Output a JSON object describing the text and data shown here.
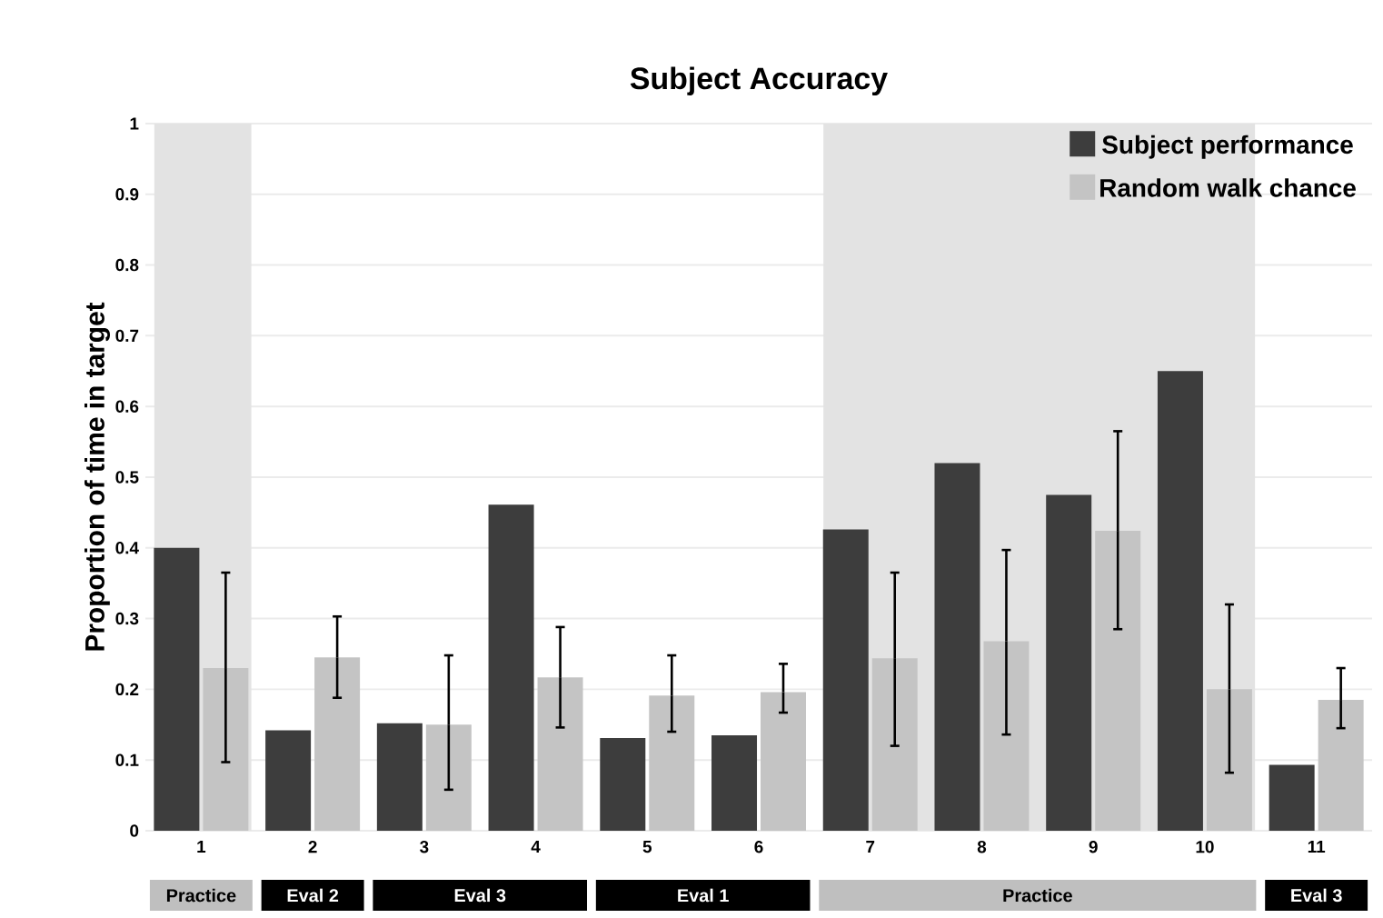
{
  "chart_data": {
    "type": "bar",
    "title": "Subject Accuracy",
    "ylabel": "Proportion of time in target",
    "categories": [
      "1",
      "2",
      "3",
      "4",
      "5",
      "6",
      "7",
      "8",
      "9",
      "10",
      "11"
    ],
    "series": [
      {
        "name": "Subject performance",
        "color": "#3d3d3d",
        "values": [
          0.4,
          0.142,
          0.152,
          0.461,
          0.131,
          0.135,
          0.426,
          0.52,
          0.475,
          0.65,
          0.093
        ]
      },
      {
        "name": "Random walk chance",
        "color": "#c4c4c4",
        "values": [
          0.23,
          0.245,
          0.15,
          0.217,
          0.191,
          0.196,
          0.244,
          0.268,
          0.424,
          0.2,
          0.185
        ],
        "errors": [
          [
            0.097,
            0.365
          ],
          [
            0.188,
            0.303
          ],
          [
            0.058,
            0.248
          ],
          [
            0.146,
            0.288
          ],
          [
            0.14,
            0.248
          ],
          [
            0.167,
            0.236
          ],
          [
            0.12,
            0.365
          ],
          [
            0.136,
            0.397
          ],
          [
            0.285,
            0.565
          ],
          [
            0.082,
            0.32
          ],
          [
            0.145,
            0.23
          ]
        ]
      }
    ],
    "bands": [
      {
        "axis": "x",
        "from": "1",
        "to": "1",
        "color": "#e3e3e3"
      },
      {
        "axis": "x",
        "from": "7",
        "to": "10",
        "color": "#e3e3e3"
      }
    ],
    "annotations": [
      "Practice",
      "Eval 2",
      "Eval 3",
      "Eval 1",
      "Practice",
      "Eval 3"
    ],
    "ylim": [
      0,
      1
    ],
    "yticks": [
      0,
      0.1,
      0.2,
      0.3,
      0.4,
      0.5,
      0.6,
      0.7,
      0.8,
      0.9,
      1
    ],
    "grid": "y",
    "legend": "top right"
  }
}
